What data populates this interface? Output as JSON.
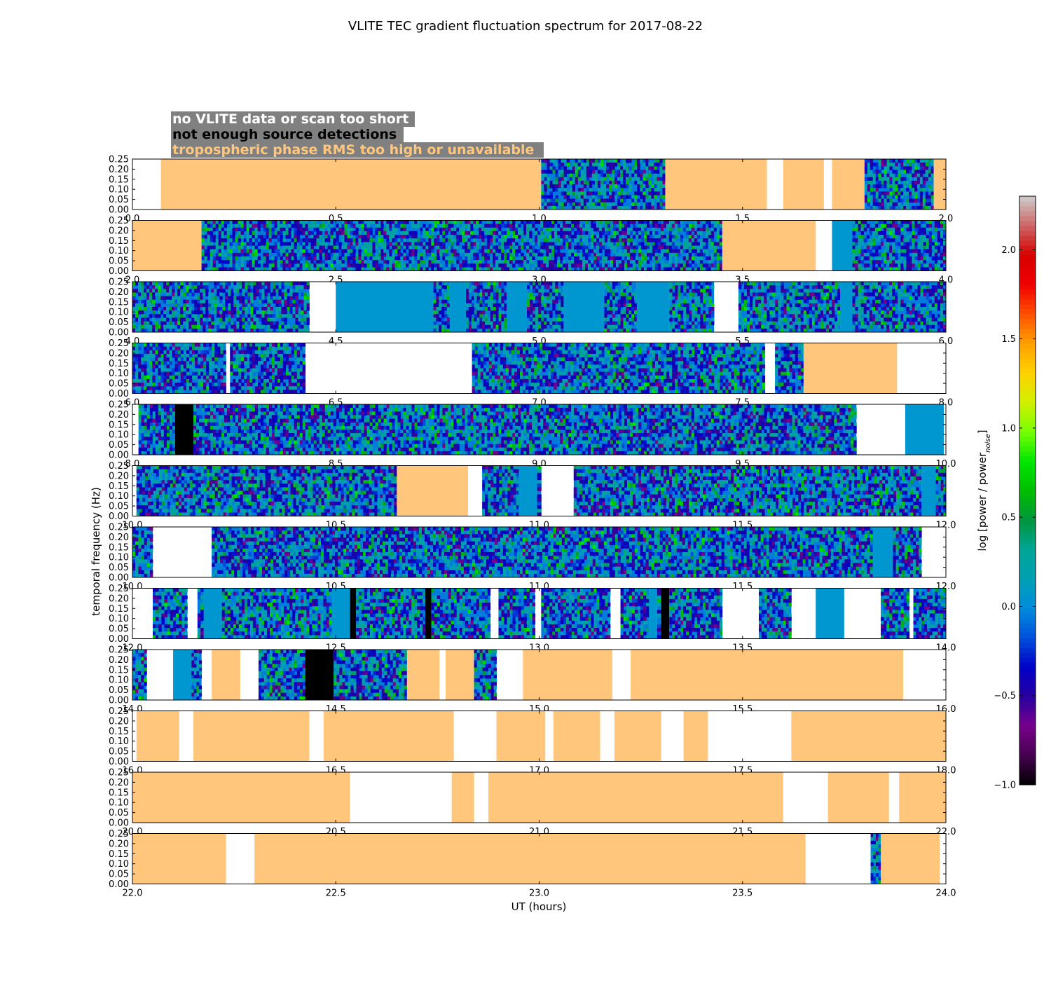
{
  "chart_data": {
    "type": "heatmap",
    "title": "VLITE TEC gradient fluctuation spectrum for 2017-08-22",
    "xlabel": "UT (hours)",
    "ylabel": "temporal frequency (Hz)",
    "colorbar": {
      "label": "log [power / power",
      "label_sub": "noise",
      "label_close": "]",
      "range": [
        -1.0,
        2.3
      ],
      "ticks": [
        {
          "v": -1.0,
          "t": "−1.0"
        },
        {
          "v": -0.5,
          "t": "−0.5"
        },
        {
          "v": 0.0,
          "t": "0.0"
        },
        {
          "v": 0.5,
          "t": "0.5"
        },
        {
          "v": 1.0,
          "t": "1.0"
        },
        {
          "v": 1.5,
          "t": "1.5"
        },
        {
          "v": 2.0,
          "t": "2.0"
        }
      ],
      "colormap": "nipy_spectral"
    },
    "legend": {
      "placement": "top-left",
      "entries": [
        {
          "text": "no VLITE data or scan too short",
          "color": "#ffffff"
        },
        {
          "text": "not enough source detections",
          "color": "#000000"
        },
        {
          "text": "tropospheric phase RMS too high or unavailable",
          "color": "#ffc67c"
        }
      ],
      "background": "#808080"
    },
    "colors": {
      "no_data": "#ffffff",
      "few_detections": "#000000",
      "tropo_high": "#ffc67c",
      "flat_low": "#0096d0"
    },
    "ylim": [
      0.0,
      0.25
    ],
    "yticks": [
      "0.00",
      "0.05",
      "0.10",
      "0.15",
      "0.20",
      "0.25"
    ],
    "panels": [
      {
        "x": [
          "0.0",
          "0.5",
          "1.0",
          "1.5",
          "2.0"
        ],
        "xlim": [
          0.0,
          2.0
        ],
        "segments": [
          [
            "n",
            0.0,
            0.07
          ],
          [
            "o",
            0.07,
            1.005
          ],
          [
            "s",
            1.005,
            1.31
          ],
          [
            "o",
            1.31,
            1.56
          ],
          [
            "n",
            1.56,
            1.6
          ],
          [
            "o",
            1.6,
            1.7
          ],
          [
            "n",
            1.7,
            1.72
          ],
          [
            "o",
            1.72,
            1.8
          ],
          [
            "s",
            1.8,
            1.97
          ],
          [
            "o",
            1.97,
            2.0
          ]
        ]
      },
      {
        "x": [
          "2.0",
          "2.5",
          "3.0",
          "3.5",
          "4.0"
        ],
        "xlim": [
          2.0,
          4.0
        ],
        "segments": [
          [
            "o",
            2.0,
            2.17
          ],
          [
            "s",
            2.17,
            3.45
          ],
          [
            "o",
            3.45,
            3.68
          ],
          [
            "n",
            3.68,
            3.72
          ],
          [
            "f",
            3.72,
            3.77
          ],
          [
            "s",
            3.77,
            4.0
          ]
        ]
      },
      {
        "x": [
          "4.0",
          "4.5",
          "5.0",
          "5.5",
          "6.0"
        ],
        "xlim": [
          4.0,
          6.0
        ],
        "segments": [
          [
            "s",
            4.0,
            4.435
          ],
          [
            "n",
            4.435,
            4.5
          ],
          [
            "f",
            4.5,
            4.74
          ],
          [
            "s",
            4.74,
            4.78
          ],
          [
            "f",
            4.78,
            4.82
          ],
          [
            "s",
            4.82,
            4.92
          ],
          [
            "f",
            4.92,
            4.97
          ],
          [
            "s",
            4.97,
            5.06
          ],
          [
            "f",
            5.06,
            5.16
          ],
          [
            "s",
            5.16,
            5.24
          ],
          [
            "f",
            5.24,
            5.32
          ],
          [
            "s",
            5.32,
            5.43
          ],
          [
            "n",
            5.43,
            5.49
          ],
          [
            "s",
            5.49,
            5.74
          ],
          [
            "f",
            5.74,
            5.77
          ],
          [
            "s",
            5.77,
            6.0
          ]
        ]
      },
      {
        "x": [
          "6.0",
          "6.5",
          "7.0",
          "7.5",
          "8.0"
        ],
        "xlim": [
          6.0,
          8.0
        ],
        "segments": [
          [
            "s",
            6.0,
            6.23
          ],
          [
            "n",
            6.23,
            6.24
          ],
          [
            "s",
            6.24,
            6.425
          ],
          [
            "n",
            6.425,
            6.835
          ],
          [
            "s",
            6.835,
            7.555
          ],
          [
            "n",
            7.555,
            7.58
          ],
          [
            "s",
            7.58,
            7.65
          ],
          [
            "o",
            7.65,
            7.88
          ],
          [
            "n",
            7.88,
            8.0
          ]
        ]
      },
      {
        "x": [
          "8.0",
          "8.5",
          "9.0",
          "9.5",
          "10.0"
        ],
        "xlim": [
          8.0,
          10.0
        ],
        "segments": [
          [
            "n",
            8.0,
            8.015
          ],
          [
            "s",
            8.015,
            8.105
          ],
          [
            "b",
            8.105,
            8.15
          ],
          [
            "s",
            8.15,
            9.78
          ],
          [
            "n",
            9.78,
            9.9
          ],
          [
            "f",
            9.9,
            9.995
          ],
          [
            "n",
            9.995,
            10.0
          ]
        ]
      },
      {
        "x": [
          "10.0",
          "10.5",
          "11.0",
          "11.5",
          "12.0"
        ],
        "xlim": [
          10.0,
          12.0
        ],
        "segments": [
          [
            "n",
            10.0,
            10.01
          ],
          [
            "s",
            10.01,
            10.65
          ],
          [
            "o",
            10.65,
            10.825
          ],
          [
            "n",
            10.825,
            10.86
          ],
          [
            "s",
            10.86,
            10.95
          ],
          [
            "f",
            10.95,
            10.995
          ],
          [
            "s",
            10.995,
            11.005
          ],
          [
            "n",
            11.005,
            11.085
          ],
          [
            "s",
            11.085,
            11.94
          ],
          [
            "f",
            11.94,
            11.975
          ],
          [
            "s",
            11.975,
            12.0
          ]
        ]
      },
      {
        "x": [
          "10.0",
          "10.5",
          "11.0",
          "11.5",
          "12.0"
        ],
        "xlim": [
          10.0,
          12.0
        ],
        "segments": [
          [
            "s",
            10.0,
            10.05
          ],
          [
            "n",
            10.05,
            10.195
          ],
          [
            "s",
            10.195,
            11.82
          ],
          [
            "f",
            11.82,
            11.87
          ],
          [
            "s",
            11.87,
            11.94
          ],
          [
            "n",
            11.94,
            12.0
          ]
        ]
      },
      {
        "x": [
          "12.0",
          "12.5",
          "13.0",
          "13.5",
          "14.0"
        ],
        "xlim": [
          12.0,
          14.0
        ],
        "segments": [
          [
            "n",
            12.0,
            12.05
          ],
          [
            "s",
            12.05,
            12.135
          ],
          [
            "n",
            12.135,
            12.16
          ],
          [
            "s",
            12.16,
            12.175
          ],
          [
            "f",
            12.175,
            12.22
          ],
          [
            "s",
            12.22,
            12.49
          ],
          [
            "f",
            12.49,
            12.535
          ],
          [
            "b",
            12.535,
            12.55
          ],
          [
            "s",
            12.55,
            12.72
          ],
          [
            "b",
            12.72,
            12.735
          ],
          [
            "s",
            12.735,
            12.88
          ],
          [
            "n",
            12.88,
            12.9
          ],
          [
            "s",
            12.9,
            12.99
          ],
          [
            "n",
            12.99,
            13.005
          ],
          [
            "s",
            13.005,
            13.175
          ],
          [
            "n",
            13.175,
            13.2
          ],
          [
            "s",
            13.2,
            13.27
          ],
          [
            "f",
            13.27,
            13.29
          ],
          [
            "s",
            13.29,
            13.3
          ],
          [
            "b",
            13.3,
            13.32
          ],
          [
            "s",
            13.32,
            13.45
          ],
          [
            "n",
            13.45,
            13.54
          ],
          [
            "s",
            13.54,
            13.62
          ],
          [
            "n",
            13.62,
            13.68
          ],
          [
            "f",
            13.68,
            13.75
          ],
          [
            "n",
            13.75,
            13.84
          ],
          [
            "s",
            13.84,
            13.91
          ],
          [
            "n",
            13.91,
            13.92
          ],
          [
            "s",
            13.92,
            14.0
          ]
        ]
      },
      {
        "x": [
          "14.0",
          "14.5",
          "15.0",
          "15.5",
          "16.0"
        ],
        "xlim": [
          14.0,
          16.0
        ],
        "segments": [
          [
            "s",
            14.0,
            14.035
          ],
          [
            "n",
            14.035,
            14.1
          ],
          [
            "f",
            14.1,
            14.145
          ],
          [
            "s",
            14.145,
            14.17
          ],
          [
            "n",
            14.17,
            14.195
          ],
          [
            "o",
            14.195,
            14.265
          ],
          [
            "n",
            14.265,
            14.31
          ],
          [
            "s",
            14.31,
            14.425
          ],
          [
            "b",
            14.425,
            14.495
          ],
          [
            "s",
            14.495,
            14.675
          ],
          [
            "o",
            14.675,
            14.755
          ],
          [
            "n",
            14.755,
            14.77
          ],
          [
            "o",
            14.77,
            14.84
          ],
          [
            "s",
            14.84,
            14.895
          ],
          [
            "n",
            14.895,
            14.96
          ],
          [
            "o",
            14.96,
            15.18
          ],
          [
            "n",
            15.18,
            15.225
          ],
          [
            "o",
            15.225,
            15.895
          ],
          [
            "n",
            15.895,
            16.0
          ]
        ]
      },
      {
        "x": [
          "16.0",
          "16.5",
          "17.0",
          "17.5",
          "18.0"
        ],
        "xlim": [
          16.0,
          18.0
        ],
        "segments": [
          [
            "n",
            16.0,
            16.01
          ],
          [
            "o",
            16.01,
            16.115
          ],
          [
            "n",
            16.115,
            16.15
          ],
          [
            "o",
            16.15,
            16.435
          ],
          [
            "n",
            16.435,
            16.47
          ],
          [
            "o",
            16.47,
            16.79
          ],
          [
            "n",
            16.79,
            16.895
          ],
          [
            "o",
            16.895,
            17.015
          ],
          [
            "n",
            17.015,
            17.035
          ],
          [
            "o",
            17.035,
            17.15
          ],
          [
            "n",
            17.15,
            17.185
          ],
          [
            "o",
            17.185,
            17.3
          ],
          [
            "n",
            17.3,
            17.355
          ],
          [
            "o",
            17.355,
            17.415
          ],
          [
            "n",
            17.415,
            17.62
          ],
          [
            "o",
            17.62,
            18.0
          ]
        ]
      },
      {
        "x": [
          "20.0",
          "20.5",
          "21.0",
          "21.5",
          "22.0"
        ],
        "xlim": [
          20.0,
          22.0
        ],
        "segments": [
          [
            "o",
            20.0,
            20.535
          ],
          [
            "n",
            20.535,
            20.785
          ],
          [
            "o",
            20.785,
            20.84
          ],
          [
            "n",
            20.84,
            20.875
          ],
          [
            "o",
            20.875,
            21.6
          ],
          [
            "n",
            21.6,
            21.71
          ],
          [
            "o",
            21.71,
            21.86
          ],
          [
            "n",
            21.86,
            21.885
          ],
          [
            "o",
            21.885,
            22.0
          ]
        ]
      },
      {
        "x": [
          "22.0",
          "22.5",
          "23.0",
          "23.5",
          "24.0"
        ],
        "xlim": [
          22.0,
          24.0
        ],
        "segments": [
          [
            "o",
            22.0,
            22.23
          ],
          [
            "n",
            22.23,
            22.3
          ],
          [
            "o",
            22.3,
            23.655
          ],
          [
            "n",
            23.655,
            23.815
          ],
          [
            "s",
            23.815,
            23.84
          ],
          [
            "o",
            23.84,
            23.985
          ],
          [
            "n",
            23.985,
            24.0
          ]
        ]
      }
    ]
  }
}
